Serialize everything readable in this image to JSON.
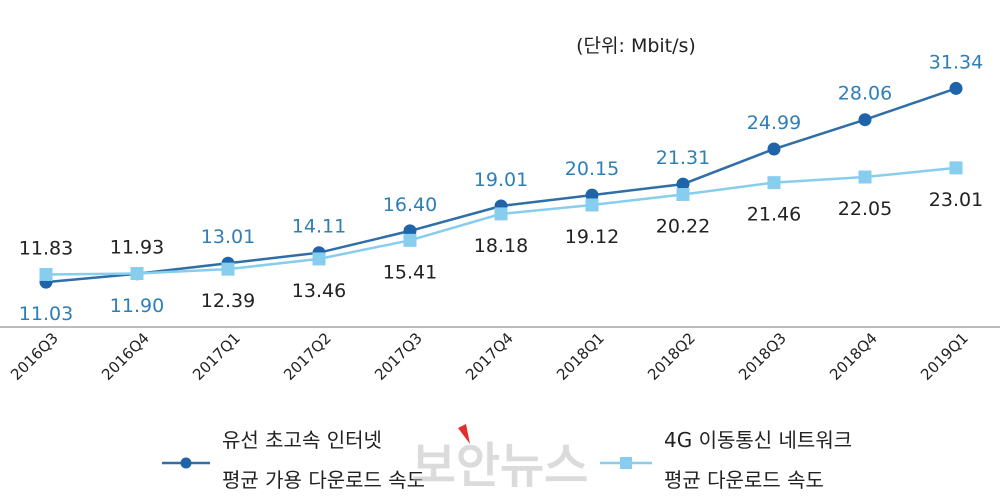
{
  "chart_data": {
    "type": "line",
    "unit_label": "(단위: Mbit/s)",
    "categories": [
      "2016Q3",
      "2016Q4",
      "2017Q1",
      "2017Q2",
      "2017Q3",
      "2017Q4",
      "2018Q1",
      "2018Q2",
      "2018Q3",
      "2018Q4",
      "2019Q1"
    ],
    "ylim": [
      8,
      36
    ],
    "grid": false,
    "legend_position": "bottom",
    "series": [
      {
        "key": "wired",
        "name_line1": "유선 초고속 인터넷",
        "name_line2": "평균 가용 다운로드 속도",
        "color": "#2f6ea6",
        "marker": "circle",
        "values": [
          11.03,
          11.9,
          13.01,
          14.11,
          16.4,
          19.01,
          20.15,
          21.31,
          24.99,
          28.06,
          31.34
        ],
        "labels": [
          "11.03",
          "11.90",
          "13.01",
          "14.11",
          "16.40",
          "19.01",
          "20.15",
          "21.31",
          "24.99",
          "28.06",
          "31.34"
        ]
      },
      {
        "key": "mobile",
        "name_line1": "4G 이동통신 네트워크",
        "name_line2": "평균 다운로드 속도",
        "color": "#87cdee",
        "marker": "square",
        "values": [
          11.83,
          11.93,
          12.39,
          13.46,
          15.41,
          18.18,
          19.12,
          20.22,
          21.46,
          22.05,
          23.01
        ],
        "labels": [
          "11.83",
          "11.93",
          "12.39",
          "13.46",
          "15.41",
          "18.18",
          "19.12",
          "20.22",
          "21.46",
          "22.05",
          "23.01"
        ]
      }
    ]
  },
  "colors": {
    "wired_label": "#2e7fb8",
    "mobile_label": "#222222",
    "axis": "#a6a6a6"
  },
  "watermark": "보안뉴스"
}
